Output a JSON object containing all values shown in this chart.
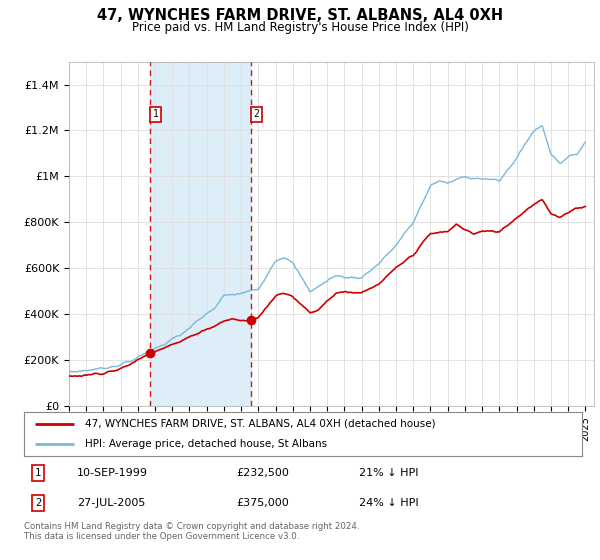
{
  "title": "47, WYNCHES FARM DRIVE, ST. ALBANS, AL4 0XH",
  "subtitle": "Price paid vs. HM Land Registry's House Price Index (HPI)",
  "ylim": [
    0,
    1500000
  ],
  "yticks": [
    0,
    200000,
    400000,
    600000,
    800000,
    1000000,
    1200000,
    1400000
  ],
  "ytick_labels": [
    "£0",
    "£200K",
    "£400K",
    "£600K",
    "£800K",
    "£1M",
    "£1.2M",
    "£1.4M"
  ],
  "sale1_date_label": "10-SEP-1999",
  "sale1_price": 232500,
  "sale1_hpi_pct": "21% ↓ HPI",
  "sale1_x": 1999.7,
  "sale2_date_label": "27-JUL-2005",
  "sale2_price": 375000,
  "sale2_hpi_pct": "24% ↓ HPI",
  "sale2_x": 2005.57,
  "line1_color": "#cc0000",
  "line2_color": "#7ab8d9",
  "fill_color": "#ddeef8",
  "vline_color": "#cc0000",
  "legend_line1": "47, WYNCHES FARM DRIVE, ST. ALBANS, AL4 0XH (detached house)",
  "legend_line2": "HPI: Average price, detached house, St Albans",
  "footer": "Contains HM Land Registry data © Crown copyright and database right 2024.\nThis data is licensed under the Open Government Licence v3.0.",
  "background_color": "#ffffff",
  "grid_color": "#dddddd"
}
